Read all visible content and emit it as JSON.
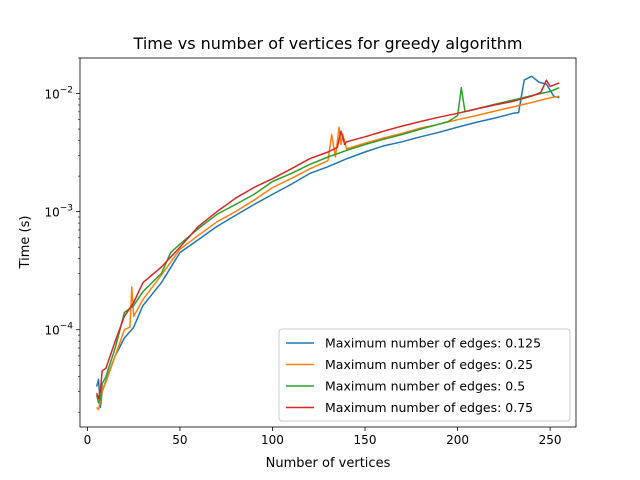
{
  "chart_data": {
    "type": "line",
    "title": "Time vs number of vertices for greedy algorithm",
    "xlabel": "Number of vertices",
    "ylabel": "Time (s)",
    "xlim": [
      -4,
      264
    ],
    "ylim": [
      1.5e-05,
      0.02
    ],
    "yscale": "log",
    "xticks": [
      0,
      50,
      100,
      150,
      200,
      250
    ],
    "yticks": [
      {
        "value": 0.0001,
        "base": "10",
        "exp": "−4"
      },
      {
        "value": 0.001,
        "base": "10",
        "exp": "−3"
      },
      {
        "value": 0.01,
        "base": "10",
        "exp": "−2"
      }
    ],
    "grid": false,
    "legend_position": "lower right",
    "series": [
      {
        "name": "Maximum number of edges: 0.125",
        "color": "#1f77b4",
        "x": [
          5,
          6,
          7,
          8,
          10,
          15,
          20,
          25,
          30,
          40,
          50,
          60,
          70,
          80,
          90,
          100,
          110,
          120,
          130,
          140,
          150,
          160,
          170,
          180,
          190,
          200,
          210,
          220,
          230,
          233,
          236,
          240,
          244,
          248,
          252,
          255
        ],
        "y": [
          3.3e-05,
          3.8e-05,
          2.2e-05,
          3e-05,
          3.7e-05,
          6e-05,
          8.5e-05,
          0.000105,
          0.00016,
          0.00025,
          0.00045,
          0.00058,
          0.00075,
          0.00093,
          0.00115,
          0.0014,
          0.0017,
          0.0021,
          0.0024,
          0.0028,
          0.0032,
          0.0036,
          0.0039,
          0.0043,
          0.0047,
          0.0052,
          0.0057,
          0.0062,
          0.0068,
          0.0069,
          0.013,
          0.014,
          0.0125,
          0.012,
          0.0095,
          0.0092
        ]
      },
      {
        "name": "Maximum number of edges: 0.25",
        "color": "#ff7f0e",
        "x": [
          5,
          6,
          7,
          8,
          10,
          15,
          20,
          23,
          24,
          25,
          30,
          40,
          50,
          60,
          70,
          80,
          90,
          100,
          110,
          120,
          130,
          132,
          134,
          136,
          137,
          138,
          140,
          150,
          160,
          170,
          180,
          190,
          200,
          210,
          220,
          230,
          240,
          250,
          255
        ],
        "y": [
          2.2e-05,
          2.1e-05,
          2.5e-05,
          3e-05,
          3.6e-05,
          6e-05,
          0.0001,
          0.000105,
          0.00023,
          0.00013,
          0.00018,
          0.00029,
          0.00048,
          0.00063,
          0.00082,
          0.001,
          0.00125,
          0.0016,
          0.0019,
          0.0023,
          0.0027,
          0.0045,
          0.0029,
          0.0052,
          0.0037,
          0.0045,
          0.0034,
          0.0038,
          0.0042,
          0.0046,
          0.0051,
          0.0055,
          0.006,
          0.0065,
          0.0071,
          0.0077,
          0.0084,
          0.0092,
          0.0095
        ]
      },
      {
        "name": "Maximum number of edges: 0.5",
        "color": "#2ca02c",
        "x": [
          5,
          6,
          7,
          8,
          10,
          15,
          20,
          25,
          30,
          40,
          45,
          50,
          60,
          70,
          80,
          90,
          100,
          110,
          120,
          130,
          140,
          150,
          160,
          170,
          180,
          190,
          195,
          200,
          202,
          204,
          210,
          220,
          230,
          240,
          250,
          255
        ],
        "y": [
          2.8e-05,
          2.4e-05,
          2.6e-05,
          3.5e-05,
          4e-05,
          7e-05,
          0.00014,
          0.00016,
          0.00021,
          0.0003,
          0.00045,
          0.00053,
          0.00072,
          0.00095,
          0.00115,
          0.0014,
          0.0018,
          0.0021,
          0.0025,
          0.0029,
          0.0033,
          0.0037,
          0.0041,
          0.0045,
          0.005,
          0.0055,
          0.0058,
          0.0065,
          0.0112,
          0.007,
          0.0074,
          0.0081,
          0.0088,
          0.0096,
          0.0104,
          0.0112
        ]
      },
      {
        "name": "Maximum number of edges: 0.75",
        "color": "#d62728",
        "x": [
          5,
          6,
          7,
          8,
          10,
          15,
          20,
          25,
          30,
          40,
          50,
          60,
          70,
          80,
          90,
          100,
          110,
          120,
          130,
          135,
          137,
          139,
          140,
          150,
          160,
          170,
          180,
          190,
          200,
          210,
          220,
          230,
          240,
          245,
          248,
          250,
          255
        ],
        "y": [
          2.9e-05,
          2.6e-05,
          3.1e-05,
          4.5e-05,
          4.7e-05,
          8e-05,
          0.00013,
          0.00017,
          0.00025,
          0.00034,
          0.0005,
          0.00075,
          0.001,
          0.0013,
          0.0016,
          0.0019,
          0.0023,
          0.0028,
          0.0032,
          0.0035,
          0.0048,
          0.0037,
          0.0039,
          0.0043,
          0.0048,
          0.0053,
          0.0058,
          0.0063,
          0.0068,
          0.0074,
          0.008,
          0.0086,
          0.0095,
          0.0102,
          0.013,
          0.0115,
          0.0123
        ]
      }
    ]
  }
}
